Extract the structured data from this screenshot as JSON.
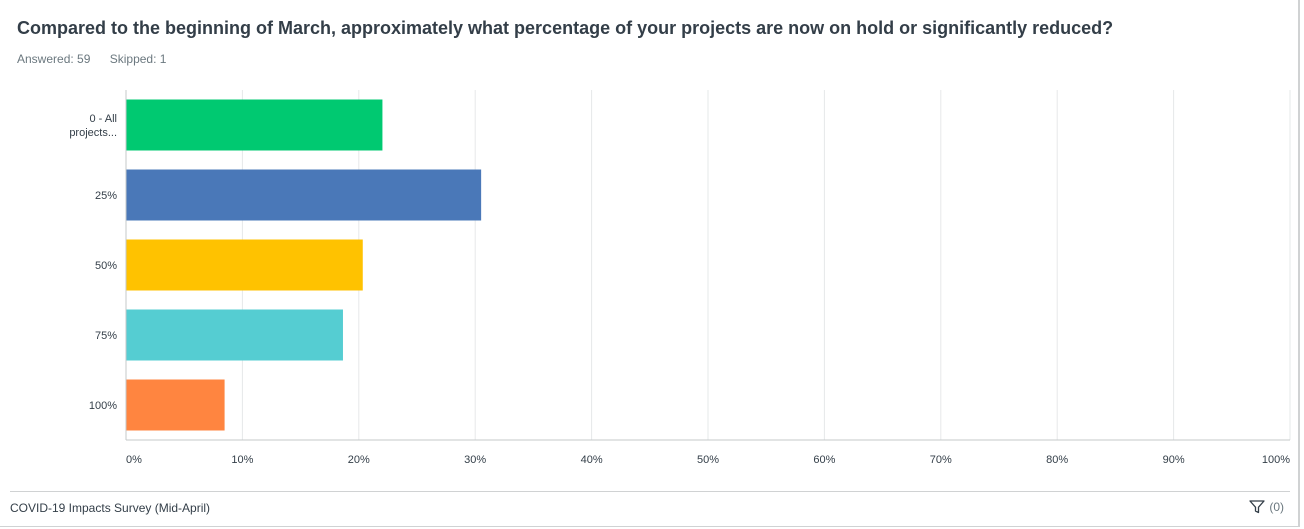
{
  "question": {
    "title": "Compared to the beginning of March, approximately what percentage of your projects are now on hold or significantly reduced?",
    "answered": "Answered: 59",
    "skipped": "Skipped: 1"
  },
  "footer": {
    "survey_name": "COVID-19 Impacts Survey (Mid-April)",
    "filter_count": "(0)",
    "filter_icon": "filter-icon"
  },
  "chart_data": {
    "type": "bar",
    "orientation": "horizontal",
    "categories": [
      "0 - All projects...",
      "25%",
      "50%",
      "75%",
      "100%"
    ],
    "category_lines": [
      [
        "0 - All",
        "projects..."
      ],
      [
        "25%"
      ],
      [
        "50%"
      ],
      [
        "75%"
      ],
      [
        "100%"
      ]
    ],
    "values": [
      22.03,
      30.51,
      20.34,
      18.64,
      8.47
    ],
    "colors": [
      "#00c971",
      "#4a78b8",
      "#ffc200",
      "#55cdd2",
      "#ff8540"
    ],
    "xlim": [
      0,
      100
    ],
    "xticks": [
      0,
      10,
      20,
      30,
      40,
      50,
      60,
      70,
      80,
      90,
      100
    ],
    "xtick_labels": [
      "0%",
      "10%",
      "20%",
      "30%",
      "40%",
      "50%",
      "60%",
      "70%",
      "80%",
      "90%",
      "100%"
    ],
    "grid": true,
    "gridColor": "#e6e8e9",
    "labelColor": "#333e48",
    "legend": "none"
  }
}
